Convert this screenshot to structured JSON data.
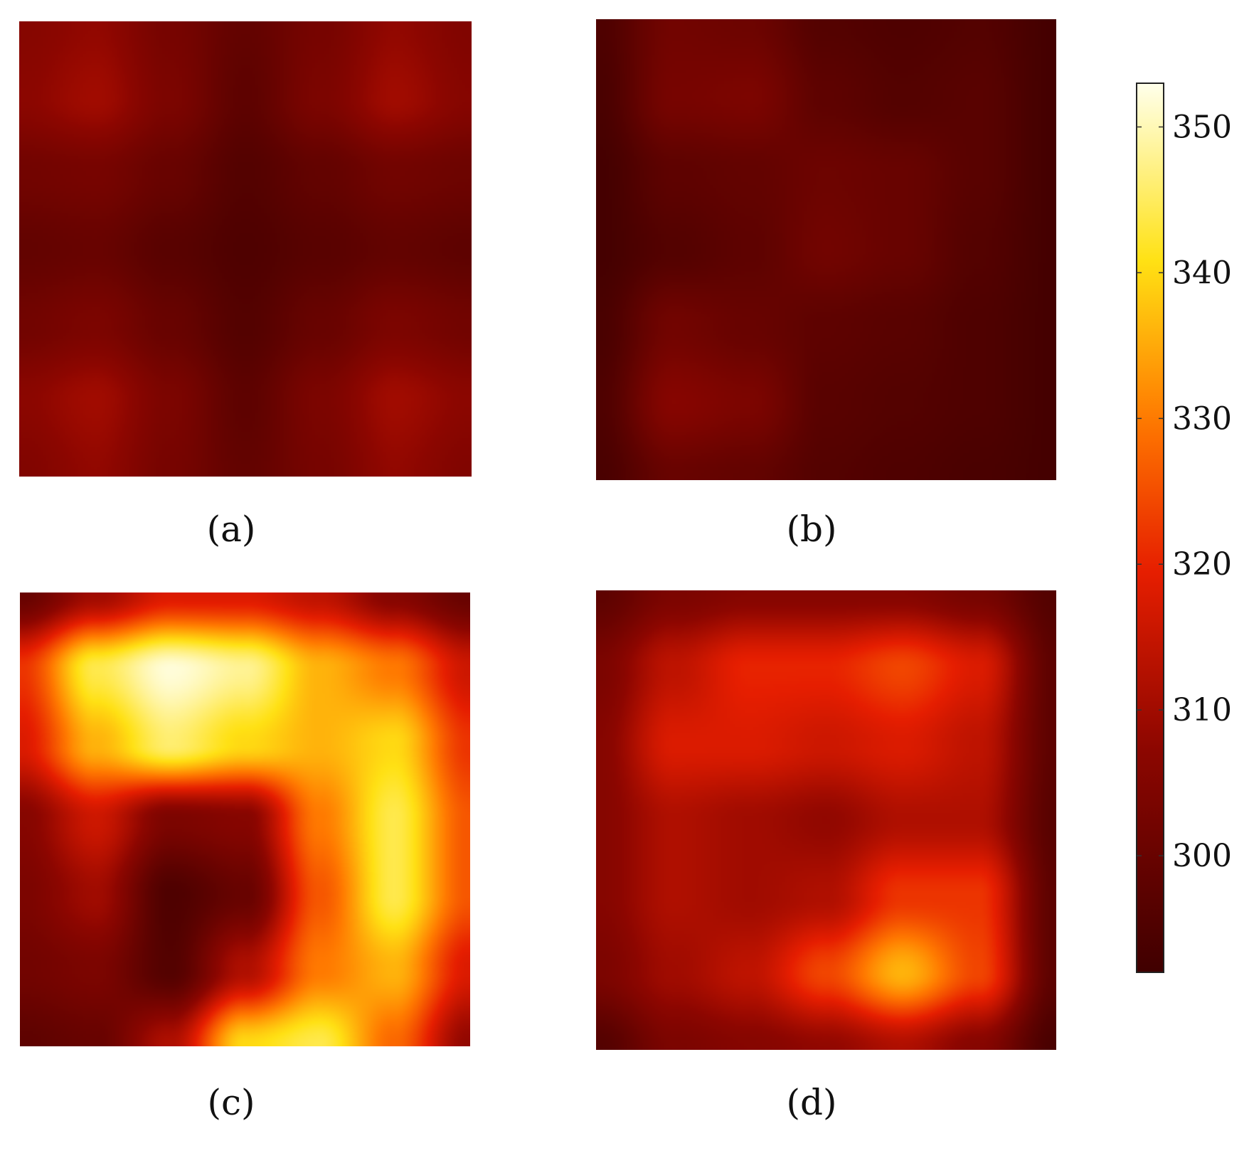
{
  "chart_data": {
    "type": "heatmap",
    "title": "",
    "colormap": "hot",
    "colorbar": {
      "min": 292,
      "max": 353,
      "ticks": [
        300,
        310,
        320,
        330,
        340,
        350
      ],
      "tick_labels": [
        "300",
        "310",
        "320",
        "330",
        "340",
        "350"
      ]
    },
    "panels": [
      {
        "label": "(a)",
        "grid": [
          [
            306,
            308,
            303,
            299,
            303,
            308,
            305
          ],
          [
            307,
            310,
            304,
            298,
            304,
            310,
            306
          ],
          [
            302,
            303,
            300,
            296,
            299,
            302,
            301
          ],
          [
            299,
            300,
            297,
            295,
            297,
            299,
            298
          ],
          [
            302,
            304,
            300,
            296,
            300,
            304,
            302
          ],
          [
            307,
            310,
            304,
            298,
            304,
            310,
            307
          ],
          [
            305,
            308,
            303,
            299,
            303,
            308,
            305
          ]
        ]
      },
      {
        "label": "(b)",
        "grid": [
          [
            295,
            302,
            301,
            296,
            295,
            296,
            293
          ],
          [
            294,
            303,
            304,
            298,
            296,
            297,
            293
          ],
          [
            293,
            298,
            299,
            301,
            300,
            297,
            293
          ],
          [
            293,
            296,
            298,
            302,
            300,
            296,
            293
          ],
          [
            294,
            302,
            300,
            298,
            297,
            295,
            293
          ],
          [
            295,
            306,
            304,
            297,
            296,
            295,
            293
          ],
          [
            294,
            300,
            299,
            296,
            295,
            294,
            293
          ]
        ]
      },
      {
        "label": "(c)",
        "grid": [
          [
            300,
            310,
            318,
            318,
            314,
            306,
            300
          ],
          [
            322,
            344,
            352,
            348,
            336,
            330,
            316
          ],
          [
            318,
            336,
            346,
            340,
            336,
            340,
            322
          ],
          [
            306,
            316,
            304,
            306,
            330,
            344,
            326
          ],
          [
            304,
            310,
            295,
            300,
            326,
            344,
            326
          ],
          [
            302,
            304,
            296,
            312,
            330,
            336,
            318
          ],
          [
            298,
            300,
            312,
            340,
            344,
            328,
            308
          ]
        ]
      },
      {
        "label": "(d)",
        "grid": [
          [
            298,
            304,
            306,
            306,
            306,
            303,
            296
          ],
          [
            304,
            314,
            320,
            320,
            324,
            318,
            298
          ],
          [
            306,
            318,
            318,
            316,
            318,
            314,
            298
          ],
          [
            306,
            312,
            310,
            308,
            312,
            312,
            297
          ],
          [
            306,
            312,
            310,
            312,
            322,
            322,
            298
          ],
          [
            304,
            310,
            314,
            324,
            336,
            324,
            298
          ],
          [
            296,
            304,
            306,
            308,
            312,
            306,
            294
          ]
        ]
      }
    ]
  }
}
